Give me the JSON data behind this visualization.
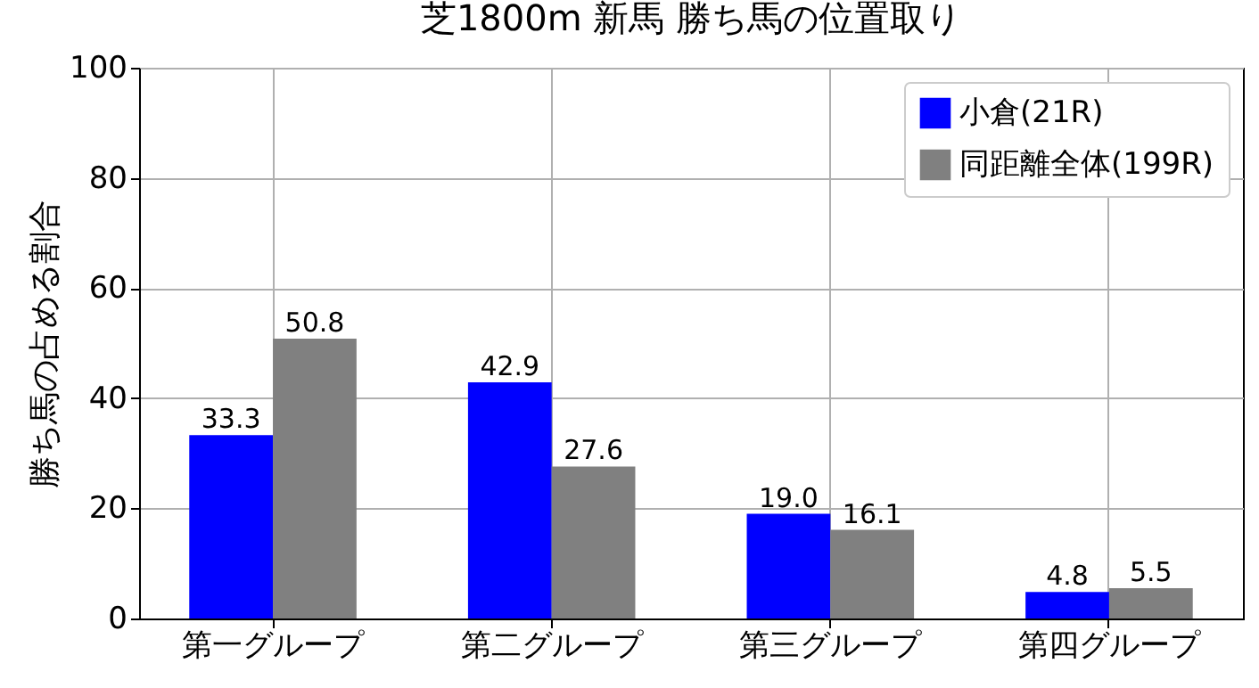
{
  "chart_data": {
    "type": "bar",
    "title": "芝1800m 新馬 勝ち馬の位置取り",
    "ylabel": "勝ち馬の占める割合",
    "categories": [
      "第一グループ",
      "第二グループ",
      "第三グループ",
      "第四グループ"
    ],
    "series": [
      {
        "name": "小倉(21R)",
        "color": "#0000ff",
        "values": [
          33.3,
          42.9,
          19.0,
          4.8
        ],
        "value_labels": [
          "33.3",
          "42.9",
          "19.0",
          "4.8"
        ]
      },
      {
        "name": "同距離全体(199R)",
        "color": "#808080",
        "values": [
          50.8,
          27.6,
          16.1,
          5.5
        ],
        "value_labels": [
          "50.8",
          "27.6",
          "16.1",
          "5.5"
        ]
      }
    ],
    "ylim": [
      0,
      100
    ],
    "yticks": [
      0,
      20,
      40,
      60,
      80,
      100
    ],
    "grid": true,
    "legend": "top right"
  }
}
